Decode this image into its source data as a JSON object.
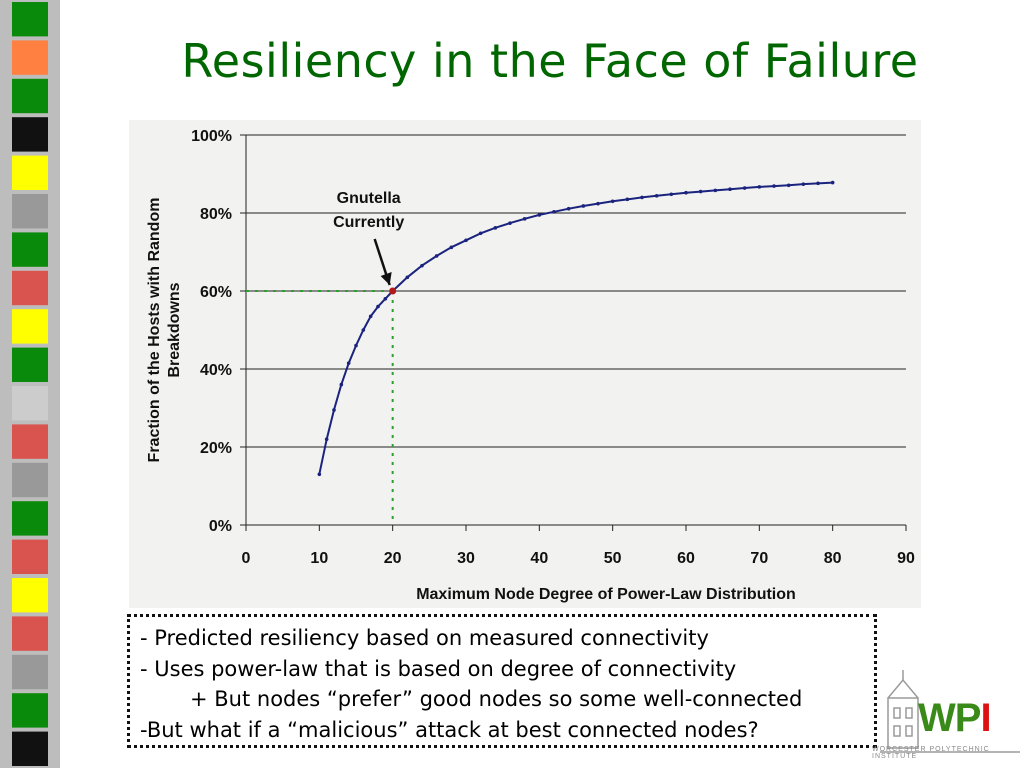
{
  "slide": {
    "title": "Resiliency in the Face of Failure"
  },
  "colors": {
    "title": "#006600",
    "curve": "#1a237e",
    "gnutella_point": "#b21a1a",
    "guide_line": "#2e9e2e",
    "stripe": [
      "#0a8a0a",
      "#ff8040",
      "#0a8a0a",
      "#111111",
      "#ffff00",
      "#999999",
      "#0a8a0a",
      "#d9534f",
      "#ffff00",
      "#0a8a0a",
      "#cccccc",
      "#d9534f",
      "#999999",
      "#0a8a0a",
      "#d9534f",
      "#ffff00",
      "#d9534f",
      "#999999",
      "#0a8a0a",
      "#111111"
    ]
  },
  "chart_data": {
    "type": "line",
    "xlabel": "Maximum Node Degree of Power-Law Distribution",
    "ylabel": "Fraction of the Hosts with Random Breakdowns",
    "ylabel_lines": [
      "Fraction of the Hosts with Random",
      "Breakdowns"
    ],
    "xlim": [
      0,
      90
    ],
    "ylim": [
      0,
      100
    ],
    "x_ticks": [
      "0",
      "10",
      "20",
      "30",
      "40",
      "50",
      "60",
      "70",
      "80",
      "90"
    ],
    "y_ticks": [
      "0%",
      "20%",
      "40%",
      "60%",
      "80%",
      "100%"
    ],
    "grid": "horizontal",
    "series": [
      {
        "x": [
          10,
          11,
          12,
          13,
          14,
          15,
          16,
          17,
          18,
          19,
          20,
          22,
          24,
          26,
          28,
          30,
          32,
          34,
          36,
          38,
          40,
          42,
          44,
          46,
          48,
          50,
          52,
          54,
          56,
          58,
          60,
          62,
          64,
          66,
          68,
          70,
          72,
          74,
          76,
          78,
          80
        ],
        "values": [
          13,
          22,
          29.5,
          36,
          41.5,
          46,
          50,
          53.5,
          56,
          58,
          60,
          63.5,
          66.5,
          69,
          71.2,
          73,
          74.8,
          76.2,
          77.4,
          78.5,
          79.5,
          80.3,
          81.1,
          81.8,
          82.4,
          83,
          83.5,
          84,
          84.4,
          84.8,
          85.2,
          85.5,
          85.8,
          86.1,
          86.4,
          86.7,
          86.9,
          87.1,
          87.4,
          87.6,
          87.8
        ]
      }
    ],
    "annotation": {
      "lines": [
        "Gnutella",
        "Currently"
      ],
      "x": 20,
      "y": 60
    }
  },
  "notes": {
    "lines": [
      "- Predicted resiliency based on measured connectivity",
      "- Uses  power-law that is based on degree of connectivity",
      "+ But nodes “prefer” good nodes so some well-connected",
      "-But what if a “malicious” attack at best connected nodes?"
    ]
  },
  "logo": {
    "name": "WPI",
    "subtitle": "WORCESTER POLYTECHNIC INSTITUTE"
  }
}
